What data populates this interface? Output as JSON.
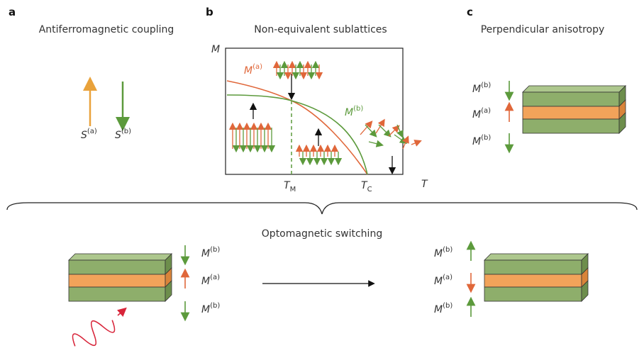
{
  "panels": [
    {
      "label": "a",
      "title": "Antiferromagnetic coupling",
      "spins": [
        {
          "symbol": "S",
          "superscript": "(a)"
        },
        {
          "symbol": "S",
          "superscript": "(b)"
        }
      ]
    },
    {
      "label": "b",
      "title": "Non-equivalent sublattices",
      "y_axis": "M",
      "x_axis": "T",
      "ticks": [
        {
          "symbol": "T",
          "subscript": "M"
        },
        {
          "symbol": "T",
          "subscript": "C"
        }
      ],
      "curves": [
        {
          "symbol": "M",
          "superscript": "(a)"
        },
        {
          "symbol": "M",
          "superscript": "(b)"
        }
      ]
    },
    {
      "label": "c",
      "title": "Perpendicular anisotropy",
      "layers": [
        {
          "symbol": "M",
          "superscript": "(b)"
        },
        {
          "symbol": "M",
          "superscript": "(a)"
        },
        {
          "symbol": "M",
          "superscript": "(b)"
        }
      ]
    }
  ],
  "switching": {
    "title": "Optomagnetic switching",
    "before": [
      {
        "symbol": "M",
        "superscript": "(b)"
      },
      {
        "symbol": "M",
        "superscript": "(a)"
      },
      {
        "symbol": "M",
        "superscript": "(b)"
      }
    ],
    "after": [
      {
        "symbol": "M",
        "superscript": "(b)"
      },
      {
        "symbol": "M",
        "superscript": "(a)"
      },
      {
        "symbol": "M",
        "superscript": "(b)"
      }
    ]
  }
}
